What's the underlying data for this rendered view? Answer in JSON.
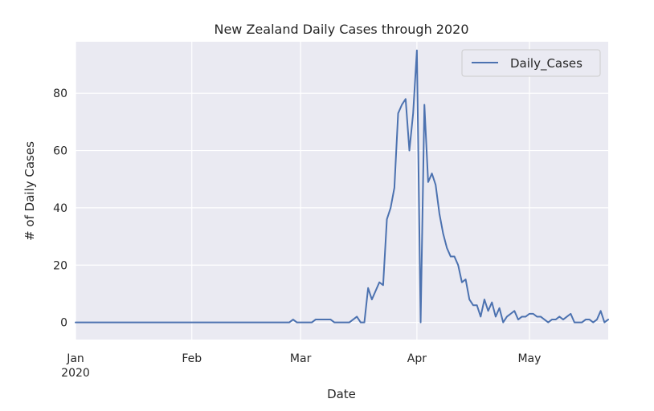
{
  "chart_data": {
    "type": "line",
    "title": "New Zealand Daily Cases through 2020",
    "xlabel": "Date",
    "ylabel": "# of Daily Cases",
    "xlim": [
      "2020-01-01",
      "2020-05-22"
    ],
    "ylim": [
      -6,
      98
    ],
    "yticks": [
      0,
      20,
      40,
      60,
      80
    ],
    "xticks": [
      {
        "date": "2020-01-01",
        "label": "Jan",
        "sublabel": "2020"
      },
      {
        "date": "2020-02-01",
        "label": "Feb",
        "sublabel": ""
      },
      {
        "date": "2020-03-01",
        "label": "Mar",
        "sublabel": ""
      },
      {
        "date": "2020-04-01",
        "label": "Apr",
        "sublabel": ""
      },
      {
        "date": "2020-05-01",
        "label": "May",
        "sublabel": ""
      }
    ],
    "grid": true,
    "legend_position": "top-right",
    "series": [
      {
        "name": "Daily_Cases",
        "color": "#4c72b0",
        "points": [
          [
            "2020-01-01",
            0
          ],
          [
            "2020-02-27",
            0
          ],
          [
            "2020-02-28",
            1
          ],
          [
            "2020-02-29",
            0
          ],
          [
            "2020-03-04",
            0
          ],
          [
            "2020-03-05",
            1
          ],
          [
            "2020-03-09",
            1
          ],
          [
            "2020-03-10",
            0
          ],
          [
            "2020-03-14",
            0
          ],
          [
            "2020-03-15",
            1
          ],
          [
            "2020-03-16",
            2
          ],
          [
            "2020-03-17",
            0
          ],
          [
            "2020-03-18",
            0
          ],
          [
            "2020-03-19",
            12
          ],
          [
            "2020-03-20",
            8
          ],
          [
            "2020-03-21",
            11
          ],
          [
            "2020-03-22",
            14
          ],
          [
            "2020-03-23",
            13
          ],
          [
            "2020-03-24",
            36
          ],
          [
            "2020-03-25",
            40
          ],
          [
            "2020-03-26",
            47
          ],
          [
            "2020-03-27",
            73
          ],
          [
            "2020-03-28",
            76
          ],
          [
            "2020-03-29",
            78
          ],
          [
            "2020-03-30",
            60
          ],
          [
            "2020-03-31",
            73
          ],
          [
            "2020-04-01",
            95
          ],
          [
            "2020-04-02",
            0
          ],
          [
            "2020-04-03",
            76
          ],
          [
            "2020-04-04",
            49
          ],
          [
            "2020-04-05",
            52
          ],
          [
            "2020-04-06",
            48
          ],
          [
            "2020-04-07",
            38
          ],
          [
            "2020-04-08",
            31
          ],
          [
            "2020-04-09",
            26
          ],
          [
            "2020-04-10",
            23
          ],
          [
            "2020-04-11",
            23
          ],
          [
            "2020-04-12",
            20
          ],
          [
            "2020-04-13",
            14
          ],
          [
            "2020-04-14",
            15
          ],
          [
            "2020-04-15",
            8
          ],
          [
            "2020-04-16",
            6
          ],
          [
            "2020-04-17",
            6
          ],
          [
            "2020-04-18",
            2
          ],
          [
            "2020-04-19",
            8
          ],
          [
            "2020-04-20",
            4
          ],
          [
            "2020-04-21",
            7
          ],
          [
            "2020-04-22",
            2
          ],
          [
            "2020-04-23",
            5
          ],
          [
            "2020-04-24",
            0
          ],
          [
            "2020-04-25",
            2
          ],
          [
            "2020-04-26",
            3
          ],
          [
            "2020-04-27",
            4
          ],
          [
            "2020-04-28",
            1
          ],
          [
            "2020-04-29",
            2
          ],
          [
            "2020-04-30",
            2
          ],
          [
            "2020-05-01",
            3
          ],
          [
            "2020-05-02",
            3
          ],
          [
            "2020-05-03",
            2
          ],
          [
            "2020-05-04",
            2
          ],
          [
            "2020-05-05",
            1
          ],
          [
            "2020-05-06",
            0
          ],
          [
            "2020-05-07",
            1
          ],
          [
            "2020-05-08",
            1
          ],
          [
            "2020-05-09",
            2
          ],
          [
            "2020-05-10",
            1
          ],
          [
            "2020-05-11",
            2
          ],
          [
            "2020-05-12",
            3
          ],
          [
            "2020-05-13",
            0
          ],
          [
            "2020-05-14",
            0
          ],
          [
            "2020-05-15",
            0
          ],
          [
            "2020-05-16",
            1
          ],
          [
            "2020-05-17",
            1
          ],
          [
            "2020-05-18",
            0
          ],
          [
            "2020-05-19",
            1
          ],
          [
            "2020-05-20",
            4
          ],
          [
            "2020-05-21",
            0
          ],
          [
            "2020-05-22",
            1
          ]
        ]
      }
    ]
  }
}
